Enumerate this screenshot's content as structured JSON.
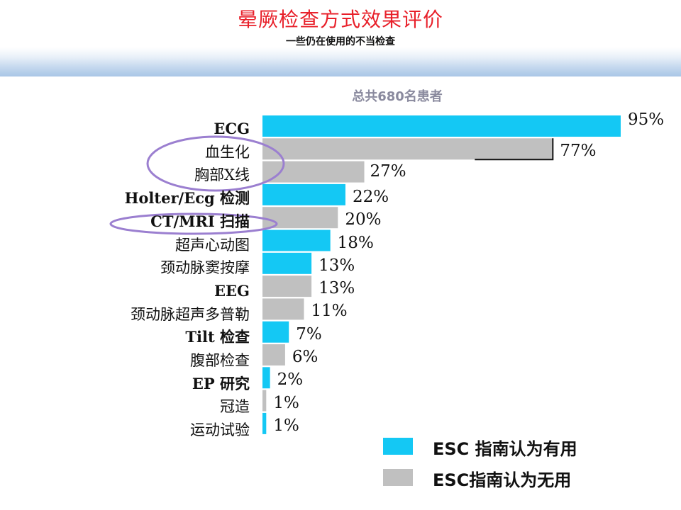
{
  "header": {
    "title": "晕厥检查方式效果评价",
    "subtitle": "一些仍在使用的不当检查"
  },
  "note": "总共680名患者",
  "colors": {
    "useful": "#14c8f4",
    "useless": "#c0c0c0",
    "highlight": "#9b7fd0"
  },
  "chart_data": {
    "type": "bar",
    "orientation": "horizontal",
    "value_unit": "%",
    "categories": [
      "ECG",
      "血生化",
      "胸部X线",
      "Holter/Ecg 检测",
      "CT/MRI 扫描",
      "超声心动图",
      "颈动脉窦按摩",
      "EEG",
      "颈动脉超声多普勒",
      "Tilt 检查",
      "腹部检查",
      "EP 研究",
      "冠造",
      "运动试验"
    ],
    "bars": [
      {
        "category": "ECG",
        "value": 95,
        "label": "95%",
        "group": "useful"
      },
      {
        "category": "血生化",
        "value": 77,
        "label": "77%",
        "group": "useless"
      },
      {
        "category": "胸部X线",
        "value": 27,
        "label": "27%",
        "group": "useless"
      },
      {
        "category": "Holter/Ecg 检测",
        "value": 22,
        "label": "22%",
        "group": "useful"
      },
      {
        "category": "CT/MRI 扫描",
        "value": 20,
        "label": "20%",
        "group": "useless"
      },
      {
        "category": "超声心动图",
        "value": 18,
        "label": "18%",
        "group": "useful"
      },
      {
        "category": "颈动脉窦按摩",
        "value": 13,
        "label": "13%",
        "group": "useful"
      },
      {
        "category": "EEG",
        "value": 13,
        "label": "13%",
        "group": "useless"
      },
      {
        "category": "颈动脉超声多普勒",
        "value": 11,
        "label": "11%",
        "group": "useless"
      },
      {
        "category": "Tilt 检查",
        "value": 7,
        "label": "7%",
        "group": "useful"
      },
      {
        "category": "腹部检查",
        "value": 6,
        "label": "6%",
        "group": "useless"
      },
      {
        "category": "EP 研究",
        "value": 2,
        "label": "2%",
        "group": "useful"
      },
      {
        "category": "冠造",
        "value": 1,
        "label": "1%",
        "group": "useless"
      },
      {
        "category": "运动试验",
        "value": 1,
        "label": "1%",
        "group": "useful"
      }
    ],
    "legend": [
      {
        "name": "ESC 指南认为有用",
        "group": "useful"
      },
      {
        "name": "ESC指南认为无用",
        "group": "useless"
      }
    ],
    "highlighted": [
      "血生化",
      "胸部X线",
      "CT/MRI 扫描"
    ],
    "grid": false,
    "legend_position": "bottom-right"
  }
}
